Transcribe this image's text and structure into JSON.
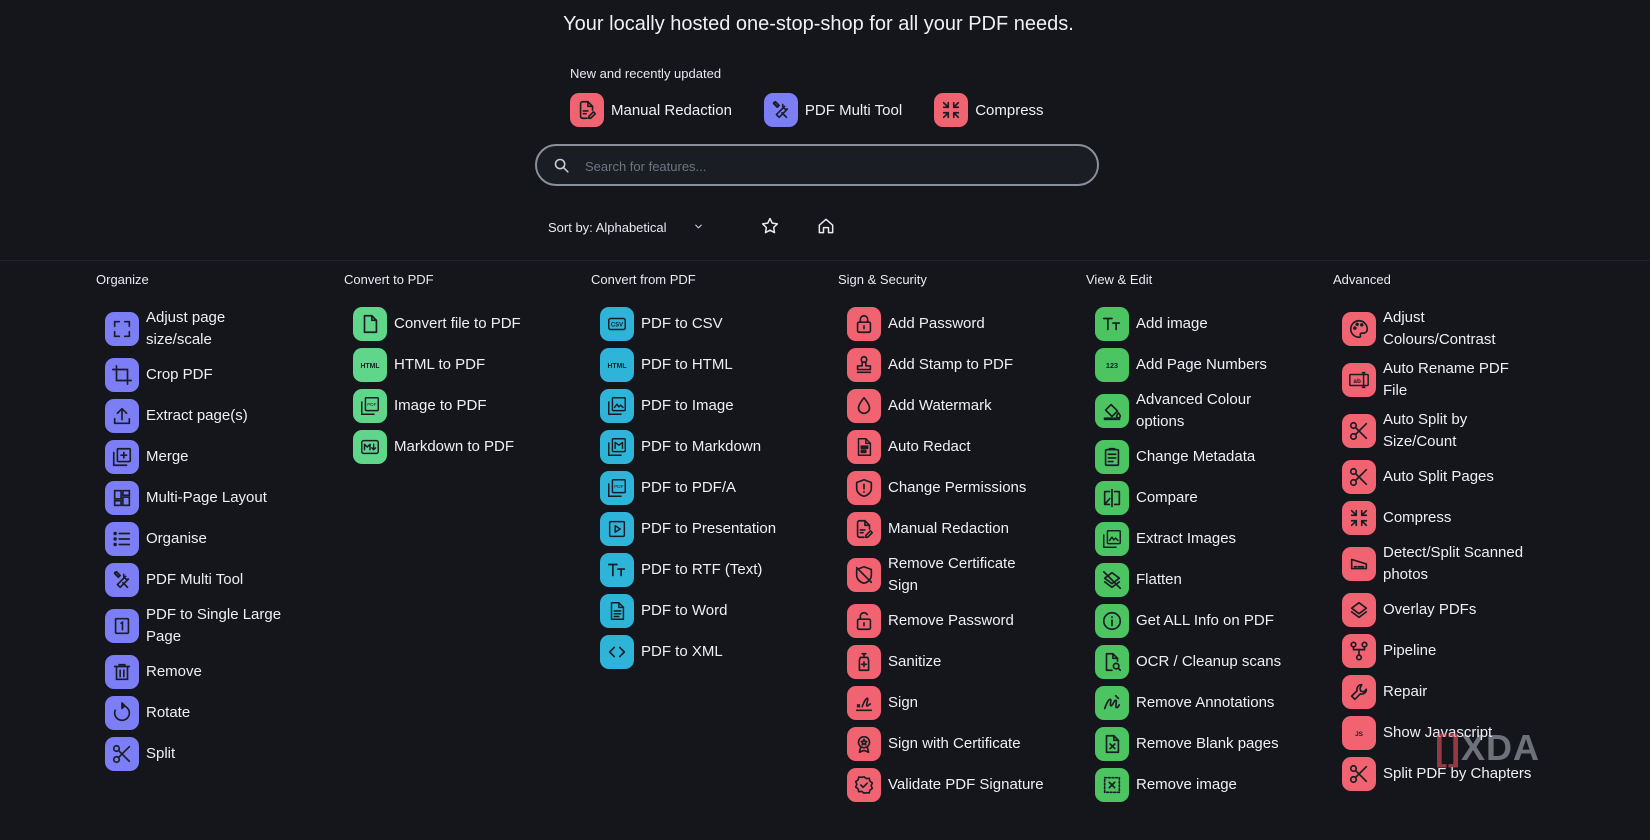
{
  "header": {
    "tagline": "Your locally hosted one-stop-shop for all your PDF needs.",
    "recent_title": "New and recently updated",
    "recent": [
      {
        "label": "Manual Redaction",
        "icon": "file-edit-icon",
        "color": "#f26371"
      },
      {
        "label": "PDF Multi Tool",
        "icon": "tools-icon",
        "color": "#7c7ef5"
      },
      {
        "label": "Compress",
        "icon": "compress-icon",
        "color": "#f26371"
      }
    ]
  },
  "search": {
    "placeholder": "Search for features..."
  },
  "controls": {
    "sort_label": "Sort by: Alphabetical"
  },
  "colors": {
    "organize": "#7c7ef5",
    "convert_to": "#5fd68a",
    "convert_from": "#2eb4d8",
    "security": "#f26371",
    "view_edit": "#4cc462",
    "advanced": "#f26371"
  },
  "categories": [
    {
      "title": "Organize",
      "items": [
        "Adjust page size/scale",
        "Crop PDF",
        "Extract page(s)",
        "Merge",
        "Multi-Page Layout",
        "Organise",
        "PDF Multi Tool",
        "PDF to Single Large Page",
        "Remove",
        "Rotate",
        "Split"
      ]
    },
    {
      "title": "Convert to PDF",
      "items": [
        "Convert file to PDF",
        "HTML to PDF",
        "Image to PDF",
        "Markdown to PDF"
      ]
    },
    {
      "title": "Convert from PDF",
      "items": [
        "PDF to CSV",
        "PDF to HTML",
        "PDF to Image",
        "PDF to Markdown",
        "PDF to PDF/A",
        "PDF to Presentation",
        "PDF to RTF (Text)",
        "PDF to Word",
        "PDF to XML"
      ]
    },
    {
      "title": "Sign & Security",
      "items": [
        "Add Password",
        "Add Stamp to PDF",
        "Add Watermark",
        "Auto Redact",
        "Change Permissions",
        "Manual Redaction",
        "Remove Certificate Sign",
        "Remove Password",
        "Sanitize",
        "Sign",
        "Sign with Certificate",
        "Validate PDF Signature"
      ]
    },
    {
      "title": "View & Edit",
      "items": [
        "Add image",
        "Add Page Numbers",
        "Advanced Colour options",
        "Change Metadata",
        "Compare",
        "Extract Images",
        "Flatten",
        "Get ALL Info on PDF",
        "OCR / Cleanup scans",
        "Remove Annotations",
        "Remove Blank pages",
        "Remove image"
      ]
    },
    {
      "title": "Advanced",
      "items": [
        "Adjust Colours/Contrast",
        "Auto Rename PDF File",
        "Auto Split by Size/Count",
        "Auto Split Pages",
        "Compress",
        "Detect/Split Scanned photos",
        "Overlay PDFs",
        "Pipeline",
        "Repair",
        "Show Javascript",
        "Split PDF by Chapters"
      ]
    }
  ],
  "watermark": {
    "text": "XDA"
  }
}
